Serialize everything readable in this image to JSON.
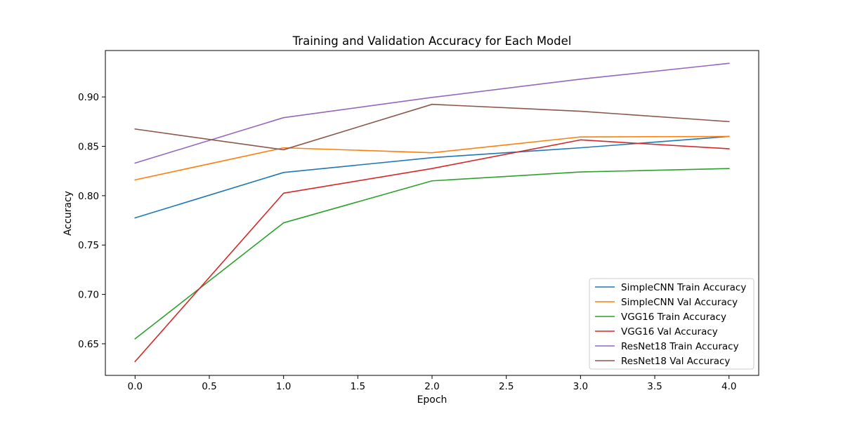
{
  "chart_data": {
    "type": "line",
    "title": "Training and Validation Accuracy for Each Model",
    "xlabel": "Epoch",
    "ylabel": "Accuracy",
    "xlim": [
      -0.2,
      4.2
    ],
    "ylim": [
      0.618,
      0.947
    ],
    "xticks": [
      0.0,
      0.5,
      1.0,
      1.5,
      2.0,
      2.5,
      3.0,
      3.5,
      4.0
    ],
    "xtick_labels": [
      "0.0",
      "0.5",
      "1.0",
      "1.5",
      "2.0",
      "2.5",
      "3.0",
      "3.5",
      "4.0"
    ],
    "yticks": [
      0.65,
      0.7,
      0.75,
      0.8,
      0.85,
      0.9
    ],
    "ytick_labels": [
      "0.65",
      "0.70",
      "0.75",
      "0.80",
      "0.85",
      "0.90"
    ],
    "grid": false,
    "legend_position": "lower-right",
    "x": [
      0,
      1,
      2,
      3,
      4
    ],
    "series": [
      {
        "name": "SimpleCNN Train Accuracy",
        "color": "#1f77b4",
        "values": [
          0.7775,
          0.8235,
          0.8385,
          0.8485,
          0.86
        ]
      },
      {
        "name": "SimpleCNN Val Accuracy",
        "color": "#ff7f0e",
        "values": [
          0.816,
          0.8485,
          0.8435,
          0.8595,
          0.86
        ]
      },
      {
        "name": "VGG16 Train Accuracy",
        "color": "#2ca02c",
        "values": [
          0.655,
          0.7725,
          0.815,
          0.824,
          0.8275
        ]
      },
      {
        "name": "VGG16 Val Accuracy",
        "color": "#d62728",
        "values": [
          0.632,
          0.8025,
          0.8275,
          0.8565,
          0.8475
        ]
      },
      {
        "name": "ResNet18 Train Accuracy",
        "color": "#9467bd",
        "values": [
          0.833,
          0.879,
          0.8995,
          0.918,
          0.934
        ]
      },
      {
        "name": "ResNet18 Val Accuracy",
        "color": "#8c564b",
        "values": [
          0.8675,
          0.8465,
          0.8925,
          0.8855,
          0.875
        ]
      }
    ]
  }
}
